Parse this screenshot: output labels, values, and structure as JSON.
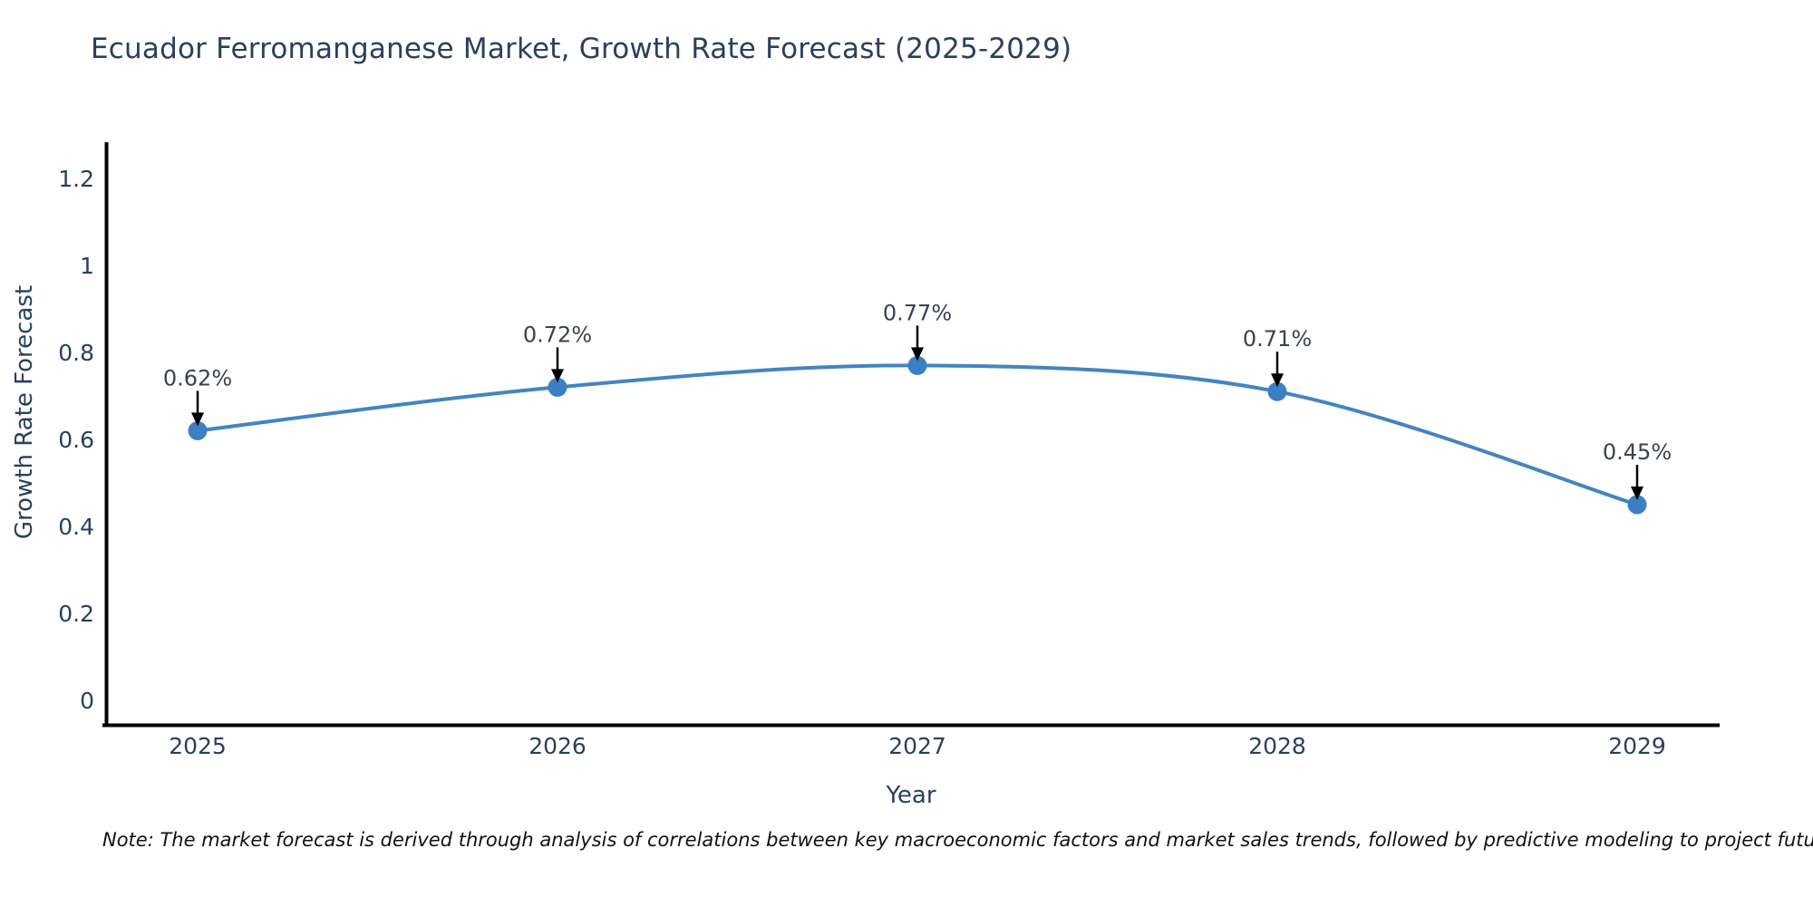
{
  "chart": {
    "colors": {
      "line": "#4285c0",
      "marker": "#3b7fc4",
      "axis": "#000000",
      "tick_text": "#2a3f5f",
      "annotation_text": "#3a424e",
      "arrow": "#000000"
    }
  },
  "chart_data": {
    "type": "line",
    "title": "Ecuador Ferromanganese Market, Growth Rate Forecast (2025-2029)",
    "x": [
      2025,
      2026,
      2027,
      2028,
      2029
    ],
    "values": [
      0.62,
      0.72,
      0.77,
      0.71,
      0.45
    ],
    "point_labels": [
      "0.62%",
      "0.72%",
      "0.77%",
      "0.71%",
      "0.45%"
    ],
    "xlabel": "Year",
    "ylabel": "Growth Rate Forecast",
    "yticks": [
      0,
      0.2,
      0.4,
      0.6,
      0.8,
      1,
      1.2
    ],
    "ylim": [
      -0.06,
      1.29
    ],
    "line_shape": "spline",
    "markers": true,
    "grid": false,
    "legend_position": "none"
  },
  "note": {
    "text": "Note: The market forecast is derived through analysis of correlations between key macroeconomic factors and market sales trends, followed by predictive modeling to project future sales"
  }
}
